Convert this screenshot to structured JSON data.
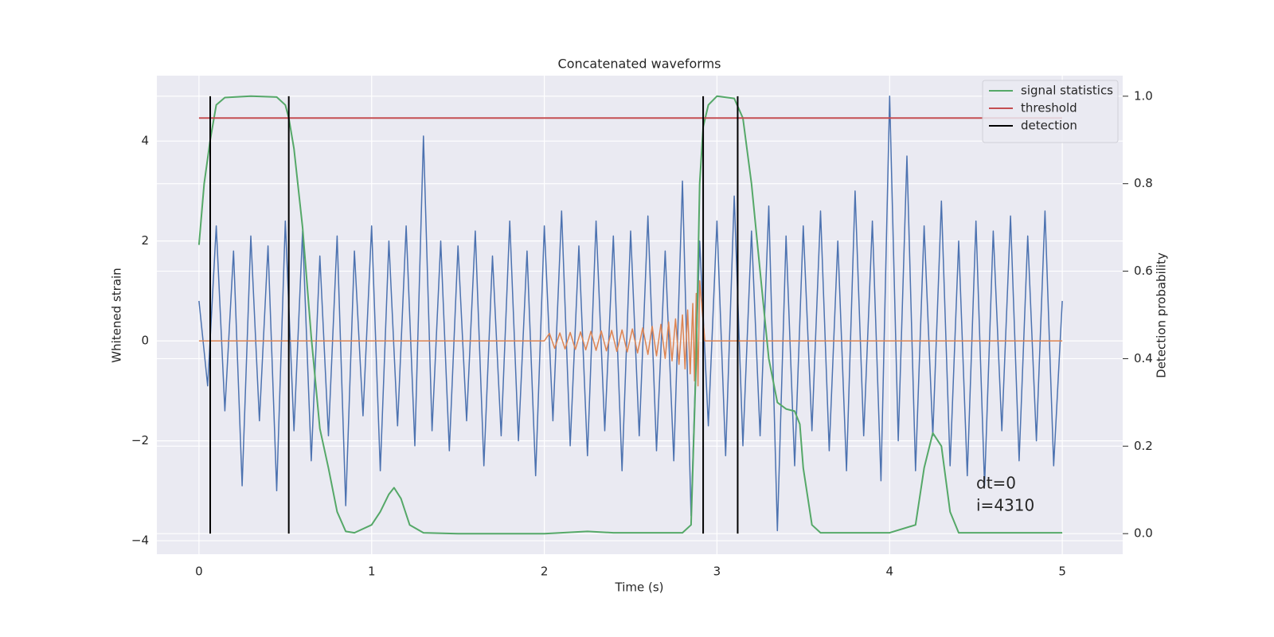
{
  "chart_data": {
    "type": "line",
    "title": "Concatenated waveforms",
    "xlabel": "Time (s)",
    "ylabel": "Whitened strain",
    "y2label": "Detection probability",
    "xlim": [
      -0.244,
      5.35
    ],
    "ylim": [
      -4.27,
      5.31
    ],
    "y2lim": [
      -0.047,
      1.047
    ],
    "xticks": [
      0,
      1,
      2,
      3,
      4,
      5
    ],
    "yticks": [
      {
        "value": -4,
        "label": "−4"
      },
      {
        "value": -2,
        "label": "−2"
      },
      0,
      2,
      4
    ],
    "y2ticks": [
      {
        "value": 0,
        "label": "0.0"
      },
      0.2,
      0.4,
      0.6,
      0.8,
      {
        "value": 1,
        "label": "1.0"
      }
    ],
    "grid": true,
    "legend": "upper right",
    "annotations": [
      "dt=0",
      "i=4310"
    ],
    "series": [
      {
        "color": "#4c72b0",
        "axis": "y",
        "x": [
          0,
          0.05,
          0.1,
          0.15,
          0.2,
          0.25,
          0.3,
          0.35,
          0.4,
          0.45,
          0.5,
          0.55,
          0.6,
          0.65,
          0.7,
          0.75,
          0.8,
          0.85,
          0.9,
          0.95,
          1,
          1.05,
          1.1,
          1.15,
          1.2,
          1.25,
          1.3,
          1.35,
          1.4,
          1.45,
          1.5,
          1.55,
          1.6,
          1.65,
          1.7,
          1.75,
          1.8,
          1.85,
          1.9,
          1.95,
          2,
          2.05,
          2.1,
          2.15,
          2.2,
          2.25,
          2.3,
          2.35,
          2.4,
          2.45,
          2.5,
          2.55,
          2.6,
          2.65,
          2.7,
          2.75,
          2.8,
          2.85,
          2.9,
          2.95,
          3,
          3.05,
          3.1,
          3.15,
          3.2,
          3.25,
          3.3,
          3.35,
          3.4,
          3.45,
          3.5,
          3.55,
          3.6,
          3.65,
          3.7,
          3.75,
          3.8,
          3.85,
          3.9,
          3.95,
          4,
          4.05,
          4.1,
          4.15,
          4.2,
          4.25,
          4.3,
          4.35,
          4.4,
          4.45,
          4.5,
          4.55,
          4.6,
          4.65,
          4.7,
          4.75,
          4.8,
          4.85,
          4.9,
          4.95,
          5
        ],
        "values": [
          0.8,
          -0.9,
          2.3,
          -1.4,
          1.8,
          -2.9,
          2.1,
          -1.6,
          1.9,
          -3.0,
          2.4,
          -1.8,
          2.2,
          -2.4,
          1.7,
          -1.9,
          2.1,
          -3.3,
          1.8,
          -1.5,
          2.3,
          -2.6,
          2.0,
          -1.7,
          2.3,
          -2.1,
          4.1,
          -1.8,
          2.0,
          -2.2,
          1.9,
          -1.6,
          2.2,
          -2.5,
          1.7,
          -1.9,
          2.4,
          -2.0,
          1.8,
          -2.7,
          2.3,
          -1.6,
          2.6,
          -2.1,
          1.9,
          -2.3,
          2.4,
          -1.8,
          2.1,
          -2.6,
          2.2,
          -1.9,
          2.5,
          -2.2,
          1.8,
          -2.4,
          3.2,
          -3.5,
          2.0,
          -1.7,
          2.4,
          -2.3,
          2.9,
          -2.1,
          2.2,
          -1.9,
          2.7,
          -3.8,
          2.1,
          -2.5,
          2.3,
          -1.8,
          2.6,
          -2.2,
          2.0,
          -2.6,
          3.0,
          -1.9,
          2.4,
          -2.8,
          4.9,
          -2.0,
          3.7,
          -2.6,
          2.3,
          -1.9,
          2.8,
          -2.5,
          2.0,
          -2.7,
          2.4,
          -2.9,
          2.2,
          -1.8,
          2.5,
          -2.4,
          2.1,
          -2.0,
          2.6,
          -2.5,
          0.8
        ]
      },
      {
        "color": "#dd8452",
        "axis": "y",
        "x": [
          0,
          2.0,
          2.03,
          2.06,
          2.09,
          2.12,
          2.15,
          2.18,
          2.21,
          2.24,
          2.27,
          2.3,
          2.33,
          2.36,
          2.39,
          2.42,
          2.45,
          2.48,
          2.51,
          2.54,
          2.57,
          2.6,
          2.625,
          2.65,
          2.675,
          2.7,
          2.72,
          2.74,
          2.76,
          2.78,
          2.8,
          2.815,
          2.83,
          2.845,
          2.86,
          2.87,
          2.88,
          2.89,
          2.9,
          2.93,
          5
        ],
        "values": [
          0,
          0,
          0.15,
          -0.15,
          0.16,
          -0.16,
          0.17,
          -0.17,
          0.18,
          -0.18,
          0.19,
          -0.19,
          0.2,
          -0.2,
          0.21,
          -0.21,
          0.22,
          -0.22,
          0.24,
          -0.24,
          0.26,
          -0.27,
          0.29,
          -0.3,
          0.33,
          -0.35,
          0.38,
          -0.4,
          0.44,
          -0.47,
          0.52,
          -0.56,
          0.62,
          -0.66,
          0.75,
          -0.8,
          0.95,
          -0.9,
          1.2,
          0,
          0
        ]
      },
      {
        "name": "signal statistics",
        "color": "#55a868",
        "axis": "y2",
        "x": [
          0,
          0.03,
          0.065,
          0.1,
          0.15,
          0.3,
          0.45,
          0.5,
          0.52,
          0.55,
          0.6,
          0.65,
          0.7,
          0.75,
          0.8,
          0.85,
          0.9,
          1.0,
          1.05,
          1.1,
          1.13,
          1.17,
          1.22,
          1.3,
          1.5,
          2.0,
          2.25,
          2.4,
          2.8,
          2.85,
          2.88,
          2.9,
          2.92,
          2.95,
          3.0,
          3.1,
          3.15,
          3.2,
          3.25,
          3.3,
          3.35,
          3.4,
          3.45,
          3.48,
          3.5,
          3.55,
          3.6,
          4.0,
          4.15,
          4.2,
          4.25,
          4.3,
          4.35,
          4.4,
          5.0
        ],
        "values": [
          0.66,
          0.8,
          0.9,
          0.98,
          0.997,
          1.0,
          0.998,
          0.98,
          0.95,
          0.88,
          0.7,
          0.45,
          0.24,
          0.15,
          0.05,
          0.005,
          0.002,
          0.02,
          0.05,
          0.09,
          0.105,
          0.08,
          0.02,
          0.002,
          0,
          0,
          0.005,
          0.002,
          0.002,
          0.02,
          0.4,
          0.8,
          0.93,
          0.98,
          1.0,
          0.995,
          0.95,
          0.8,
          0.6,
          0.4,
          0.3,
          0.285,
          0.28,
          0.25,
          0.15,
          0.02,
          0.002,
          0.002,
          0.02,
          0.15,
          0.23,
          0.2,
          0.05,
          0.002,
          0.002
        ]
      },
      {
        "name": "threshold",
        "color": "#c44e52",
        "axis": "y2",
        "x": [
          0,
          5
        ],
        "values": [
          0.95,
          0.95
        ]
      },
      {
        "name": "detection",
        "color": "#000000",
        "axis": "y2",
        "style": "vlines",
        "x": [
          0.065,
          0.52,
          2.92,
          3.12
        ],
        "ymin": 0,
        "ymax": 1
      }
    ]
  }
}
